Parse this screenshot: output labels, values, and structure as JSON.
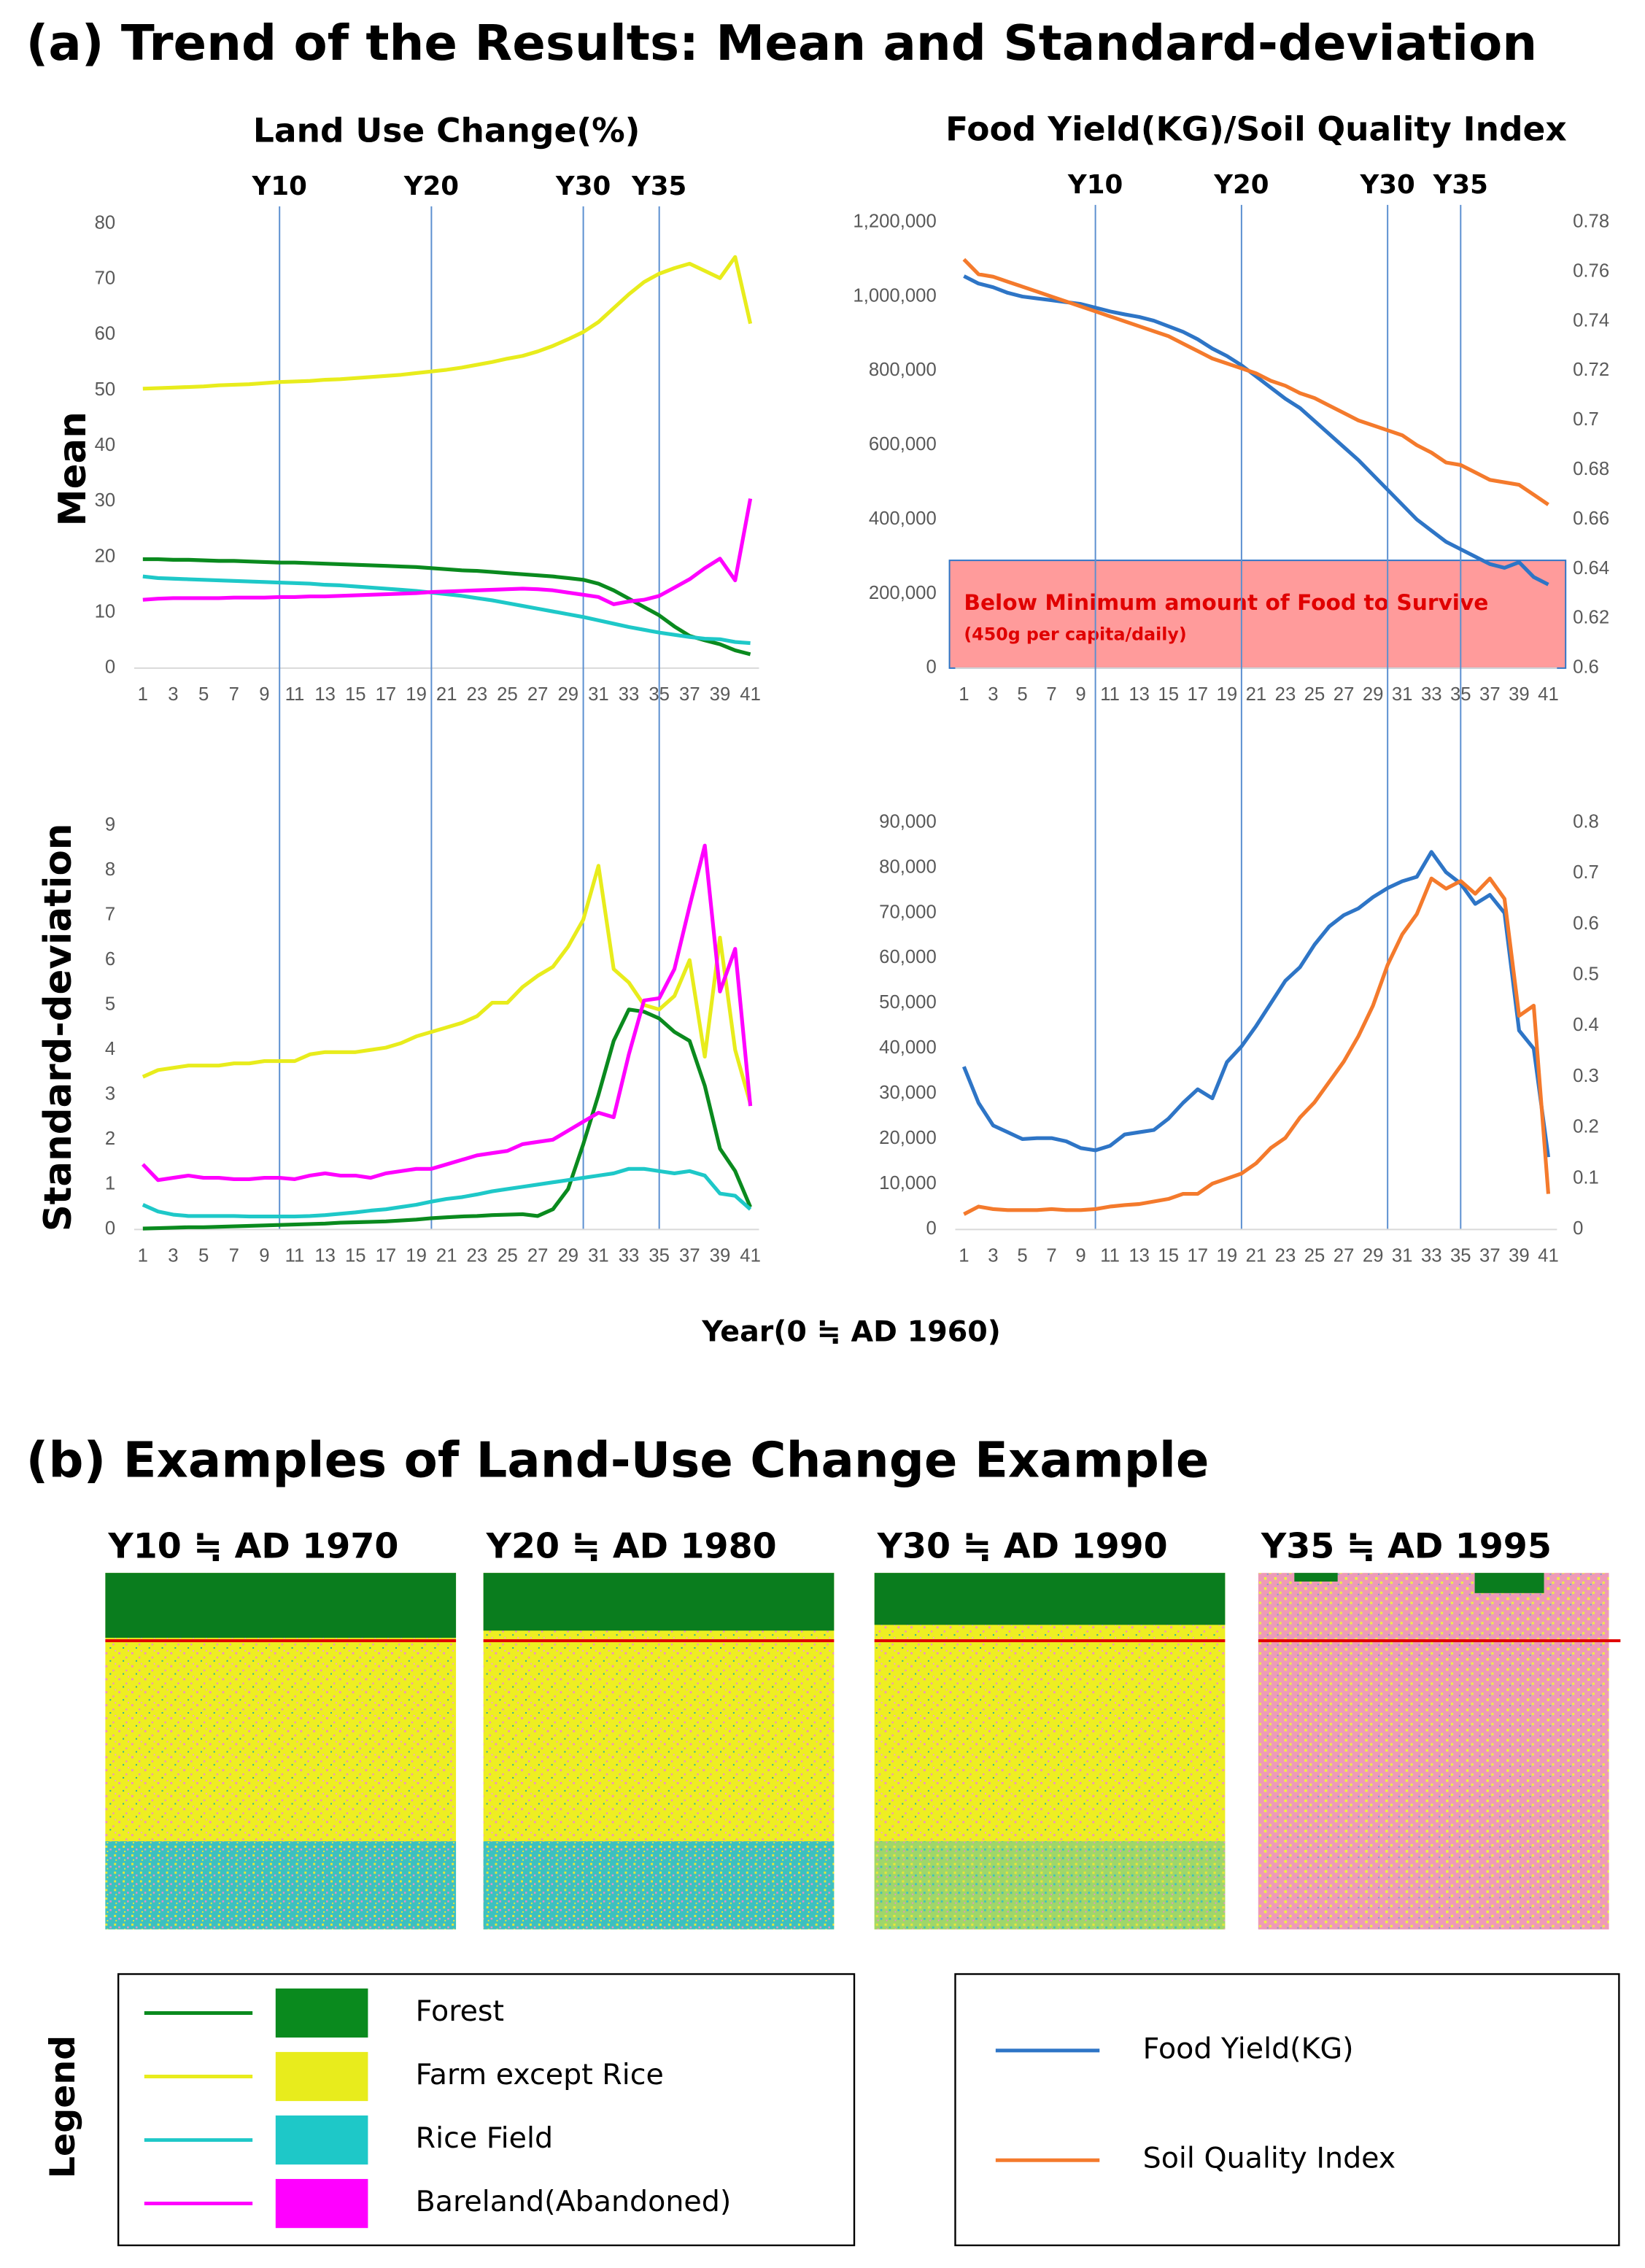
{
  "title_a": "(a) Trend of the Results: Mean and Standard-deviation",
  "title_b": "(b) Examples of Land-Use Change Example",
  "row_labels": [
    "Mean",
    "Standard-deviation"
  ],
  "x_axis_label": "Year(0 ≒ AD 1960)",
  "maps": [
    {
      "label": "Y10 ≒ AD 1970"
    },
    {
      "label": "Y20 ≒ AD 1980"
    },
    {
      "label": "Y30 ≒ AD 1990"
    },
    {
      "label": "Y35 ≒ AD 1995"
    }
  ],
  "legend_label": "Legend",
  "chart_data": [
    {
      "type": "line",
      "title": "Land Use Change(%)",
      "x": [
        1,
        2,
        3,
        4,
        5,
        6,
        7,
        8,
        9,
        10,
        11,
        12,
        13,
        14,
        15,
        16,
        17,
        18,
        19,
        20,
        21,
        22,
        23,
        24,
        25,
        26,
        27,
        28,
        29,
        30,
        31,
        32,
        33,
        34,
        35,
        36,
        37,
        38,
        39,
        40,
        41
      ],
      "xlim": [
        1,
        41
      ],
      "xticks": [
        1,
        3,
        5,
        7,
        9,
        11,
        13,
        15,
        17,
        19,
        21,
        23,
        25,
        27,
        29,
        31,
        33,
        35,
        37,
        39,
        41
      ],
      "ylim": [
        0,
        80
      ],
      "yticks": [
        0,
        10,
        20,
        30,
        40,
        50,
        60,
        70,
        80
      ],
      "markers": [
        {
          "label": "Y10",
          "x": 10
        },
        {
          "label": "Y20",
          "x": 20
        },
        {
          "label": "Y30",
          "x": 30
        },
        {
          "label": "Y35",
          "x": 35
        }
      ],
      "series": [
        {
          "name": "Forest",
          "color": "#0a8a1e",
          "values": [
            19.6,
            19.6,
            19.5,
            19.5,
            19.4,
            19.3,
            19.3,
            19.2,
            19.1,
            19.0,
            19.0,
            18.9,
            18.8,
            18.7,
            18.6,
            18.5,
            18.4,
            18.3,
            18.2,
            18.0,
            17.8,
            17.6,
            17.5,
            17.3,
            17.1,
            16.9,
            16.7,
            16.5,
            16.2,
            15.9,
            15.2,
            14.0,
            12.5,
            11.0,
            9.5,
            7.5,
            5.8,
            5.0,
            4.3,
            3.2,
            2.5
          ]
        },
        {
          "name": "Farm except Rice",
          "color": "#e8ec1c",
          "values": [
            50.3,
            50.4,
            50.5,
            50.6,
            50.7,
            50.9,
            51.0,
            51.1,
            51.3,
            51.5,
            51.6,
            51.7,
            51.9,
            52.0,
            52.2,
            52.4,
            52.6,
            52.8,
            53.1,
            53.4,
            53.7,
            54.1,
            54.6,
            55.1,
            55.7,
            56.2,
            57.0,
            58.0,
            59.2,
            60.5,
            62.3,
            64.8,
            67.3,
            69.5,
            71.0,
            72.0,
            72.8,
            71.5,
            70.2,
            74.0,
            62.0
          ]
        },
        {
          "name": "Rice Field",
          "color": "#1ec8c8",
          "values": [
            16.5,
            16.2,
            16.1,
            16.0,
            15.9,
            15.8,
            15.7,
            15.6,
            15.5,
            15.4,
            15.3,
            15.2,
            15.0,
            14.9,
            14.7,
            14.5,
            14.3,
            14.1,
            13.9,
            13.6,
            13.3,
            13.0,
            12.6,
            12.2,
            11.7,
            11.2,
            10.7,
            10.2,
            9.7,
            9.2,
            8.6,
            8.0,
            7.4,
            6.9,
            6.4,
            6.0,
            5.6,
            5.3,
            5.2,
            4.7,
            4.5
          ]
        },
        {
          "name": "Bareland(Abandoned)",
          "color": "#ff00ff",
          "values": [
            12.3,
            12.5,
            12.6,
            12.6,
            12.6,
            12.6,
            12.7,
            12.7,
            12.7,
            12.8,
            12.8,
            12.9,
            12.9,
            13.0,
            13.1,
            13.2,
            13.3,
            13.4,
            13.5,
            13.7,
            13.8,
            13.9,
            14.0,
            14.1,
            14.2,
            14.3,
            14.2,
            14.0,
            13.6,
            13.2,
            12.8,
            11.5,
            12.0,
            12.3,
            13.0,
            14.5,
            16.0,
            18.0,
            19.7,
            15.8,
            30.5
          ]
        }
      ]
    },
    {
      "type": "line",
      "title": "Food Yield(KG)/Soil Quality Index",
      "x": [
        1,
        2,
        3,
        4,
        5,
        6,
        7,
        8,
        9,
        10,
        11,
        12,
        13,
        14,
        15,
        16,
        17,
        18,
        19,
        20,
        21,
        22,
        23,
        24,
        25,
        26,
        27,
        28,
        29,
        30,
        31,
        32,
        33,
        34,
        35,
        36,
        37,
        38,
        39,
        40,
        41
      ],
      "xlim": [
        1,
        41
      ],
      "xticks": [
        1,
        3,
        5,
        7,
        9,
        11,
        13,
        15,
        17,
        19,
        21,
        23,
        25,
        27,
        29,
        31,
        33,
        35,
        37,
        39,
        41
      ],
      "ylim": [
        0,
        1200000
      ],
      "yticks": [
        0,
        {
          "value": 200000,
          "label": "200,000"
        },
        {
          "value": 400000,
          "label": "400,000"
        },
        {
          "value": 600000,
          "label": "600,000"
        },
        {
          "value": 800000,
          "label": "800,000"
        },
        {
          "value": 1000000,
          "label": "1,000,000"
        },
        {
          "value": 1200000,
          "label": "1,200,000"
        }
      ],
      "y2lim": [
        0.6,
        0.78
      ],
      "y2ticks": [
        0.6,
        0.62,
        0.64,
        0.66,
        0.68,
        0.7,
        0.72,
        0.74,
        0.76,
        0.78
      ],
      "markers": [
        {
          "label": "Y10",
          "x": 10
        },
        {
          "label": "Y20",
          "x": 20
        },
        {
          "label": "Y30",
          "x": 30
        },
        {
          "label": "Y35",
          "x": 35
        }
      ],
      "band": {
        "from": 0,
        "to": 290000,
        "color": "#ff9b9b",
        "label": "Below Minimum amount of Food to Survive",
        "sublabel": "(450g per capita/daily)"
      },
      "series": [
        {
          "name": "Food Yield(KG)",
          "color": "#2e75c6",
          "values": [
            1055000,
            1035000,
            1025000,
            1010000,
            1000000,
            995000,
            990000,
            985000,
            980000,
            970000,
            960000,
            952000,
            945000,
            935000,
            920000,
            905000,
            885000,
            860000,
            840000,
            815000,
            785000,
            755000,
            725000,
            700000,
            665000,
            630000,
            595000,
            560000,
            520000,
            480000,
            440000,
            400000,
            370000,
            340000,
            320000,
            300000,
            280000,
            270000,
            285000,
            245000,
            225000
          ]
        },
        {
          "name": "Soil Quality Index",
          "color": "#f47a2c",
          "axis": "y2",
          "values": [
            0.765,
            0.759,
            0.758,
            0.756,
            0.754,
            0.752,
            0.75,
            0.748,
            0.746,
            0.744,
            0.742,
            0.74,
            0.738,
            0.736,
            0.734,
            0.731,
            0.728,
            0.725,
            0.723,
            0.721,
            0.719,
            0.716,
            0.714,
            0.711,
            0.709,
            0.706,
            0.703,
            0.7,
            0.698,
            0.696,
            0.694,
            0.69,
            0.687,
            0.683,
            0.682,
            0.679,
            0.676,
            0.675,
            0.674,
            0.67,
            0.666
          ]
        }
      ]
    },
    {
      "type": "line",
      "x": [
        1,
        2,
        3,
        4,
        5,
        6,
        7,
        8,
        9,
        10,
        11,
        12,
        13,
        14,
        15,
        16,
        17,
        18,
        19,
        20,
        21,
        22,
        23,
        24,
        25,
        26,
        27,
        28,
        29,
        30,
        31,
        32,
        33,
        34,
        35,
        36,
        37,
        38,
        39,
        40,
        41
      ],
      "xlim": [
        1,
        41
      ],
      "xticks": [
        1,
        3,
        5,
        7,
        9,
        11,
        13,
        15,
        17,
        19,
        21,
        23,
        25,
        27,
        29,
        31,
        33,
        35,
        37,
        39,
        41
      ],
      "ylim": [
        0,
        9
      ],
      "yticks": [
        0,
        1,
        2,
        3,
        4,
        5,
        6,
        7,
        8,
        9
      ],
      "series": [
        {
          "name": "Forest",
          "color": "#0a8a1e",
          "values": [
            0.02,
            0.03,
            0.04,
            0.05,
            0.05,
            0.06,
            0.07,
            0.08,
            0.09,
            0.1,
            0.11,
            0.12,
            0.13,
            0.15,
            0.16,
            0.17,
            0.18,
            0.2,
            0.22,
            0.25,
            0.27,
            0.29,
            0.3,
            0.32,
            0.33,
            0.34,
            0.3,
            0.45,
            0.9,
            1.9,
            3.0,
            4.2,
            4.9,
            4.85,
            4.7,
            4.4,
            4.2,
            3.2,
            1.8,
            1.3,
            0.5
          ]
        },
        {
          "name": "Farm except Rice",
          "color": "#e8ec1c",
          "values": [
            3.4,
            3.55,
            3.6,
            3.65,
            3.65,
            3.65,
            3.7,
            3.7,
            3.75,
            3.75,
            3.75,
            3.9,
            3.95,
            3.95,
            3.95,
            4.0,
            4.05,
            4.15,
            4.3,
            4.4,
            4.5,
            4.6,
            4.75,
            5.05,
            5.05,
            5.4,
            5.65,
            5.85,
            6.3,
            6.9,
            8.1,
            5.8,
            5.5,
            5.0,
            4.9,
            5.2,
            6.0,
            3.85,
            6.5,
            4.0,
            2.8
          ]
        },
        {
          "name": "Rice Field",
          "color": "#1ec8c8",
          "values": [
            0.55,
            0.4,
            0.33,
            0.3,
            0.3,
            0.3,
            0.3,
            0.29,
            0.29,
            0.29,
            0.29,
            0.3,
            0.32,
            0.35,
            0.38,
            0.42,
            0.45,
            0.5,
            0.55,
            0.62,
            0.68,
            0.72,
            0.78,
            0.85,
            0.9,
            0.95,
            1.0,
            1.05,
            1.1,
            1.15,
            1.2,
            1.25,
            1.35,
            1.35,
            1.3,
            1.25,
            1.3,
            1.2,
            0.8,
            0.75,
            0.45
          ]
        },
        {
          "name": "Bareland(Abandoned)",
          "color": "#ff00ff",
          "values": [
            1.45,
            1.1,
            1.15,
            1.2,
            1.15,
            1.15,
            1.12,
            1.12,
            1.15,
            1.15,
            1.12,
            1.2,
            1.25,
            1.2,
            1.2,
            1.15,
            1.25,
            1.3,
            1.35,
            1.35,
            1.45,
            1.55,
            1.65,
            1.7,
            1.75,
            1.9,
            1.95,
            2.0,
            2.2,
            2.4,
            2.6,
            2.5,
            3.9,
            5.1,
            5.15,
            5.8,
            7.2,
            8.55,
            5.3,
            6.25,
            2.75
          ]
        }
      ]
    },
    {
      "type": "line",
      "x": [
        1,
        2,
        3,
        4,
        5,
        6,
        7,
        8,
        9,
        10,
        11,
        12,
        13,
        14,
        15,
        16,
        17,
        18,
        19,
        20,
        21,
        22,
        23,
        24,
        25,
        26,
        27,
        28,
        29,
        30,
        31,
        32,
        33,
        34,
        35,
        36,
        37,
        38,
        39,
        40,
        41
      ],
      "xlim": [
        1,
        41
      ],
      "xticks": [
        1,
        3,
        5,
        7,
        9,
        11,
        13,
        15,
        17,
        19,
        21,
        23,
        25,
        27,
        29,
        31,
        33,
        35,
        37,
        39,
        41
      ],
      "ylim": [
        0,
        90000
      ],
      "yticks": [
        0,
        {
          "value": 10000,
          "label": "10,000"
        },
        {
          "value": 20000,
          "label": "20,000"
        },
        {
          "value": 30000,
          "label": "30,000"
        },
        {
          "value": 40000,
          "label": "40,000"
        },
        {
          "value": 50000,
          "label": "50,000"
        },
        {
          "value": 60000,
          "label": "60,000"
        },
        {
          "value": 70000,
          "label": "70,000"
        },
        {
          "value": 80000,
          "label": "80,000"
        },
        {
          "value": 90000,
          "label": "90,000"
        }
      ],
      "y2lim": [
        0,
        0.8
      ],
      "y2ticks": [
        0,
        0.1,
        0.2,
        0.3,
        0.4,
        0.5,
        0.6,
        0.7,
        0.8
      ],
      "series": [
        {
          "name": "Food Yield(KG)",
          "color": "#2e75c6",
          "values": [
            36000,
            28000,
            23000,
            21500,
            20000,
            20200,
            20200,
            19500,
            18000,
            17500,
            18500,
            21000,
            21500,
            22000,
            24500,
            28000,
            31000,
            29000,
            37000,
            40500,
            45000,
            50000,
            55000,
            58000,
            63000,
            67000,
            69500,
            71000,
            73500,
            75500,
            77000,
            78000,
            83500,
            79000,
            76500,
            72000,
            74000,
            70000,
            44000,
            40000,
            16000
          ]
        },
        {
          "name": "Soil Quality Index",
          "color": "#f47a2c",
          "axis": "y2",
          "values": [
            0.03,
            0.045,
            0.04,
            0.038,
            0.038,
            0.038,
            0.04,
            0.038,
            0.038,
            0.04,
            0.045,
            0.048,
            0.05,
            0.055,
            0.06,
            0.07,
            0.07,
            0.09,
            0.1,
            0.11,
            0.13,
            0.16,
            0.18,
            0.22,
            0.25,
            0.29,
            0.33,
            0.38,
            0.44,
            0.52,
            0.58,
            0.62,
            0.69,
            0.67,
            0.685,
            0.66,
            0.69,
            0.65,
            0.42,
            0.44,
            0.07
          ]
        }
      ]
    }
  ]
}
